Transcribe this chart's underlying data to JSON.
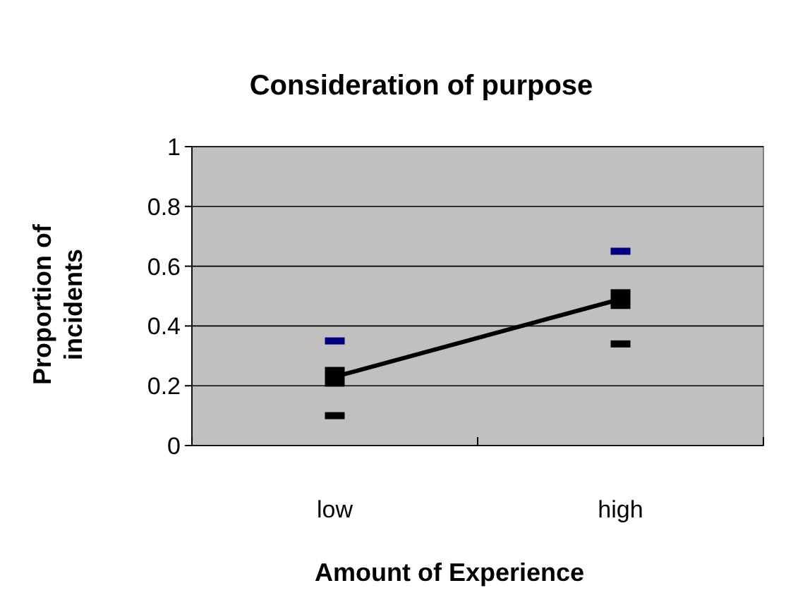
{
  "chart_data": {
    "type": "line",
    "title": "Consideration of purpose",
    "xlabel": "Amount of Experience",
    "ylabel": "Proportion of incidents",
    "categories": [
      "low",
      "high"
    ],
    "series": [
      {
        "type": "line",
        "color": "#000000",
        "marker": "square",
        "values": [
          0.23,
          0.49
        ]
      },
      {
        "type": "scatter",
        "color": "#000080",
        "values": [
          0.35,
          0.65
        ]
      },
      {
        "type": "scatter",
        "color": "#000000",
        "values": [
          0.1,
          0.34
        ]
      }
    ],
    "ylim": [
      0,
      1
    ],
    "yticks": [
      0,
      0.2,
      0.4,
      0.6,
      0.8,
      1
    ],
    "grid": "y",
    "legend": false,
    "line_style": "solid"
  }
}
